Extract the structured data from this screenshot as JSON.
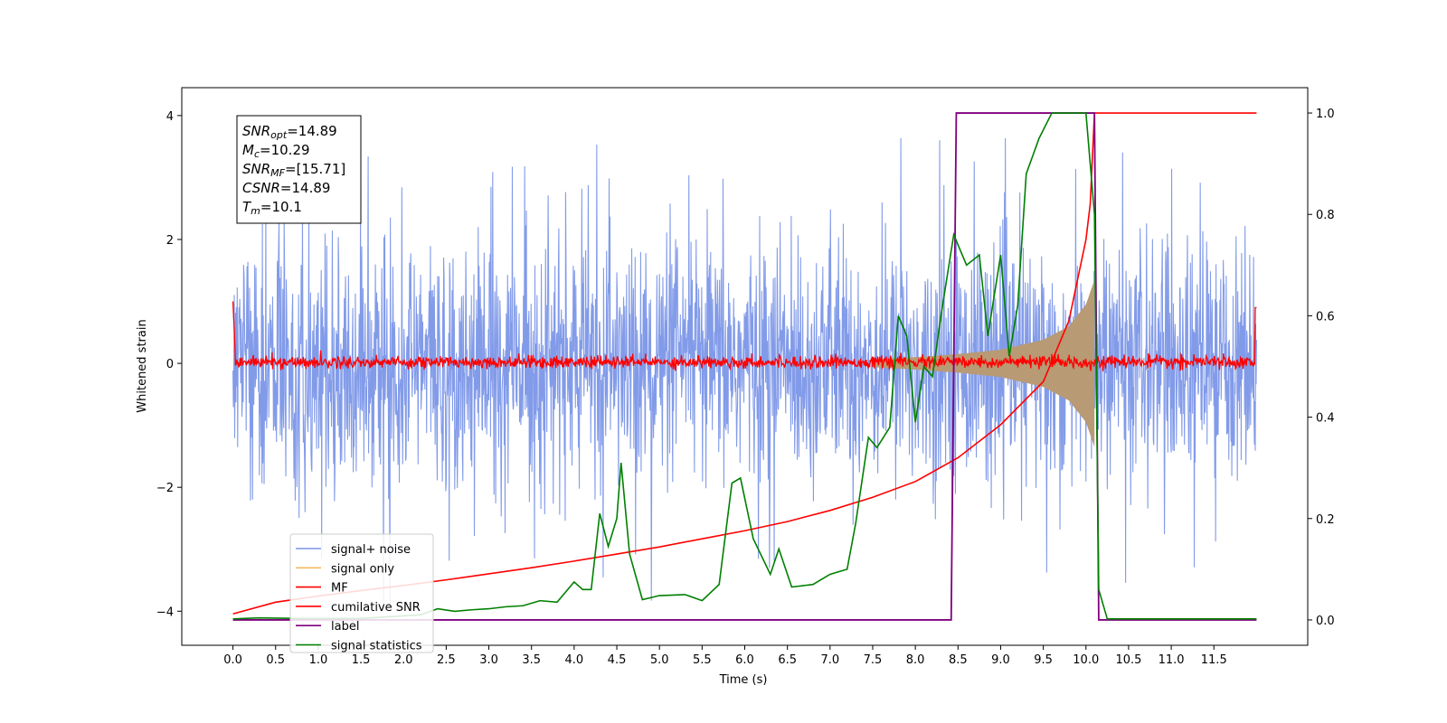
{
  "chart_data": {
    "type": "line",
    "title": "",
    "xlabel": "Time (s)",
    "ylabel": "Whitened strain",
    "x_range": [
      -0.6,
      12.6
    ],
    "y_left_range": [
      -4.55,
      4.45
    ],
    "y_right_range": [
      -0.05,
      1.05
    ],
    "x_ticks": [
      "0.0",
      "0.5",
      "1.0",
      "1.5",
      "2.0",
      "2.5",
      "3.0",
      "3.5",
      "4.0",
      "4.5",
      "5.0",
      "5.5",
      "6.0",
      "6.5",
      "7.0",
      "7.5",
      "8.0",
      "8.5",
      "9.0",
      "9.5",
      "10.0",
      "10.5",
      "11.0",
      "11.5"
    ],
    "y_left_ticks": [
      "4",
      "2",
      "0",
      "−2",
      "−4"
    ],
    "y_right_ticks": [
      "1.0",
      "0.8",
      "0.6",
      "0.4",
      "0.2",
      "0.0"
    ],
    "grid": false,
    "legend_placement": "lower-left",
    "annotation": {
      "lines": [
        {
          "base": "SNR",
          "sub": "opt",
          "value": "=14.89"
        },
        {
          "base": "M",
          "sub": "c",
          "value": "=10.29"
        },
        {
          "base": "SNR",
          "sub": "MF",
          "value": "=[15.71]"
        },
        {
          "base": "CSNR",
          "sub": "",
          "value": "=14.89"
        },
        {
          "base": "T",
          "sub": "m",
          "value": "=10.1"
        }
      ]
    },
    "series": [
      {
        "name": "signal+ noise",
        "color": "#7b96e8",
        "axis": "left",
        "kind": "noise band",
        "x_start": 0.0,
        "x_end": 12.0,
        "typical_envelope": [
          -2.0,
          2.0
        ],
        "peak_range": [
          -4.1,
          4.05
        ]
      },
      {
        "name": "signal only",
        "color": "#f4b95f",
        "axis": "left",
        "kind": "chirp envelope",
        "x_start": 7.5,
        "x_end": 10.1,
        "envelope_points": [
          [
            7.5,
            0.06
          ],
          [
            8.0,
            0.1
          ],
          [
            8.5,
            0.15
          ],
          [
            9.0,
            0.22
          ],
          [
            9.5,
            0.38
          ],
          [
            9.8,
            0.6
          ],
          [
            10.0,
            0.95
          ],
          [
            10.1,
            1.35
          ]
        ]
      },
      {
        "name": "MF",
        "color": "#ff0000",
        "axis": "left",
        "kind": "noisy trace",
        "x_start": 0.0,
        "x_end": 12.0,
        "start_value": 1.0,
        "end_value": 0.9,
        "typical_amplitude": 0.1
      },
      {
        "name": "cumilative SNR",
        "color": "#ff0000",
        "axis": "right",
        "points": [
          [
            0.0,
            0.012
          ],
          [
            0.5,
            0.035
          ],
          [
            1.0,
            0.047
          ],
          [
            1.5,
            0.058
          ],
          [
            2.0,
            0.068
          ],
          [
            2.5,
            0.079
          ],
          [
            3.0,
            0.091
          ],
          [
            3.5,
            0.103
          ],
          [
            4.0,
            0.116
          ],
          [
            4.5,
            0.13
          ],
          [
            5.0,
            0.144
          ],
          [
            5.5,
            0.16
          ],
          [
            6.0,
            0.176
          ],
          [
            6.5,
            0.194
          ],
          [
            7.0,
            0.216
          ],
          [
            7.5,
            0.242
          ],
          [
            8.0,
            0.273
          ],
          [
            8.5,
            0.32
          ],
          [
            9.0,
            0.385
          ],
          [
            9.5,
            0.47
          ],
          [
            9.8,
            0.59
          ],
          [
            10.0,
            0.75
          ],
          [
            10.05,
            0.82
          ],
          [
            10.1,
            1.0
          ],
          [
            12.0,
            1.0
          ]
        ]
      },
      {
        "name": "label",
        "color": "#800080",
        "axis": "right",
        "points": [
          [
            0.0,
            0.0
          ],
          [
            8.42,
            0.0
          ],
          [
            8.48,
            1.0
          ],
          [
            10.1,
            1.0
          ],
          [
            10.15,
            0.0
          ],
          [
            12.0,
            0.0
          ]
        ]
      },
      {
        "name": "signal statistics",
        "color": "#008000",
        "axis": "right",
        "points": [
          [
            0.0,
            0.002
          ],
          [
            0.3,
            0.004
          ],
          [
            0.8,
            0.003
          ],
          [
            1.5,
            0.003
          ],
          [
            2.0,
            0.008
          ],
          [
            2.2,
            0.01
          ],
          [
            2.4,
            0.022
          ],
          [
            2.6,
            0.017
          ],
          [
            2.8,
            0.02
          ],
          [
            3.0,
            0.022
          ],
          [
            3.2,
            0.026
          ],
          [
            3.4,
            0.028
          ],
          [
            3.6,
            0.038
          ],
          [
            3.8,
            0.035
          ],
          [
            4.0,
            0.075
          ],
          [
            4.1,
            0.06
          ],
          [
            4.2,
            0.06
          ],
          [
            4.3,
            0.21
          ],
          [
            4.4,
            0.145
          ],
          [
            4.5,
            0.2
          ],
          [
            4.55,
            0.31
          ],
          [
            4.65,
            0.13
          ],
          [
            4.8,
            0.04
          ],
          [
            5.0,
            0.048
          ],
          [
            5.3,
            0.05
          ],
          [
            5.5,
            0.038
          ],
          [
            5.7,
            0.07
          ],
          [
            5.85,
            0.27
          ],
          [
            5.95,
            0.28
          ],
          [
            6.1,
            0.16
          ],
          [
            6.3,
            0.09
          ],
          [
            6.4,
            0.14
          ],
          [
            6.55,
            0.065
          ],
          [
            6.8,
            0.07
          ],
          [
            7.0,
            0.09
          ],
          [
            7.2,
            0.1
          ],
          [
            7.3,
            0.19
          ],
          [
            7.45,
            0.36
          ],
          [
            7.55,
            0.34
          ],
          [
            7.7,
            0.38
          ],
          [
            7.8,
            0.6
          ],
          [
            7.9,
            0.56
          ],
          [
            8.0,
            0.39
          ],
          [
            8.1,
            0.5
          ],
          [
            8.2,
            0.48
          ],
          [
            8.3,
            0.6
          ],
          [
            8.45,
            0.76
          ],
          [
            8.6,
            0.7
          ],
          [
            8.75,
            0.72
          ],
          [
            8.85,
            0.56
          ],
          [
            9.0,
            0.72
          ],
          [
            9.1,
            0.52
          ],
          [
            9.2,
            0.62
          ],
          [
            9.3,
            0.88
          ],
          [
            9.45,
            0.95
          ],
          [
            9.6,
            1.0
          ],
          [
            10.0,
            1.0
          ],
          [
            10.1,
            0.8
          ],
          [
            10.15,
            0.06
          ],
          [
            10.25,
            0.002
          ],
          [
            11.0,
            0.002
          ],
          [
            12.0,
            0.002
          ]
        ]
      }
    ]
  }
}
